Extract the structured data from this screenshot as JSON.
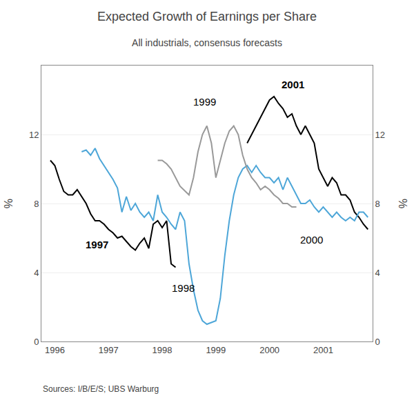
{
  "chart_data": {
    "type": "line",
    "title": "Expected Growth of Earnings per Share",
    "subtitle": "All industrials, consensus forecasts",
    "source": "Sources: I/B/E/S; UBS Warburg",
    "ylabel": "%",
    "y2label": "%",
    "xlim": [
      1995.75,
      2001.92
    ],
    "xticks": [
      1996,
      1997,
      1998,
      1999,
      2000,
      2001
    ],
    "ylim": [
      0,
      16
    ],
    "yticks": [
      0,
      4,
      8,
      12
    ],
    "y2lim": [
      0,
      16
    ],
    "y2ticks": [
      0,
      4,
      8,
      12
    ],
    "grid": true,
    "annotations": [
      {
        "text": "1997",
        "x": 1996.55,
        "y": 5.2,
        "bold": true
      },
      {
        "text": "1998",
        "x": 1998.15,
        "y": 2.7,
        "bold": false
      },
      {
        "text": "1999",
        "x": 1998.55,
        "y": 13.5,
        "bold": false
      },
      {
        "text": "2000",
        "x": 2000.55,
        "y": 5.5,
        "bold": false
      },
      {
        "text": "2001",
        "x": 2000.2,
        "y": 14.5,
        "bold": true
      }
    ],
    "series": [
      {
        "color": "#000000",
        "x": [
          1995.917,
          1996.0,
          1996.083,
          1996.167,
          1996.25,
          1996.333,
          1996.417,
          1996.5,
          1996.583,
          1996.667,
          1996.75,
          1996.833,
          1996.917,
          1997.0,
          1997.083,
          1997.167,
          1997.25,
          1997.333,
          1997.417,
          1997.5,
          1997.583,
          1997.667,
          1997.75,
          1997.833,
          1997.917,
          1998.0,
          1998.083,
          1998.167,
          1998.25
        ],
        "values": [
          10.5,
          10.2,
          9.4,
          8.7,
          8.5,
          8.5,
          8.8,
          8.4,
          8.0,
          7.4,
          7.0,
          7.0,
          6.8,
          6.5,
          6.3,
          6.0,
          6.1,
          5.8,
          5.5,
          5.3,
          5.7,
          6.0,
          5.4,
          6.8,
          7.0,
          6.6,
          7.0,
          4.5,
          4.3
        ]
      },
      {
        "color": "#000000",
        "x": [
          1999.583,
          1999.667,
          1999.75,
          1999.833,
          1999.917,
          2000.0,
          2000.083,
          2000.167,
          2000.25,
          2000.333,
          2000.417,
          2000.5,
          2000.583,
          2000.667,
          2000.75,
          2000.833,
          2000.917,
          2001.0,
          2001.083,
          2001.167,
          2001.25,
          2001.333,
          2001.417,
          2001.5,
          2001.583,
          2001.667,
          2001.75,
          2001.833
        ],
        "values": [
          11.5,
          12.0,
          12.5,
          13.0,
          13.5,
          14.0,
          14.2,
          13.8,
          13.5,
          13.0,
          13.2,
          12.5,
          12.0,
          12.5,
          12.0,
          11.5,
          10.0,
          9.5,
          9.0,
          9.5,
          9.2,
          8.5,
          8.5,
          8.2,
          7.5,
          7.2,
          6.8,
          6.5
        ]
      },
      {
        "color": "#4da6d8",
        "x": [
          1996.5,
          1996.583,
          1996.667,
          1996.75,
          1996.833,
          1996.917,
          1997.0,
          1997.083,
          1997.167,
          1997.25,
          1997.333,
          1997.417,
          1997.5,
          1997.583,
          1997.667,
          1997.75,
          1997.833,
          1997.917,
          1998.0,
          1998.083,
          1998.167,
          1998.25,
          1998.333,
          1998.417,
          1998.5,
          1998.583,
          1998.667,
          1998.75,
          1998.833,
          1999.0,
          1999.083,
          1999.167,
          1999.25,
          1999.333,
          1999.417,
          1999.5,
          1999.583,
          1999.667,
          1999.75,
          1999.833,
          1999.917,
          2000.0,
          2000.083,
          2000.167,
          2000.25,
          2000.333,
          2000.417,
          2000.5,
          2000.583,
          2000.667,
          2000.75,
          2000.833,
          2000.917,
          2001.0,
          2001.083,
          2001.167,
          2001.25,
          2001.333,
          2001.417,
          2001.5,
          2001.583,
          2001.667,
          2001.75,
          2001.833
        ],
        "values": [
          11.0,
          11.1,
          10.8,
          11.2,
          10.6,
          10.2,
          9.8,
          9.4,
          8.9,
          7.5,
          8.4,
          7.6,
          8.0,
          7.5,
          7.2,
          7.5,
          7.0,
          8.5,
          7.5,
          7.2,
          6.8,
          6.5,
          7.5,
          7.0,
          4.5,
          3.0,
          1.8,
          1.2,
          1.0,
          1.2,
          2.5,
          5.0,
          7.0,
          8.5,
          9.5,
          10.0,
          10.2,
          9.8,
          10.2,
          9.8,
          9.5,
          9.5,
          9.2,
          9.5,
          8.8,
          9.5,
          9.0,
          8.5,
          8.0,
          8.0,
          8.2,
          7.8,
          7.5,
          7.8,
          7.5,
          7.2,
          7.5,
          7.2,
          7.0,
          7.2,
          7.0,
          7.5,
          7.5,
          7.2
        ]
      },
      {
        "color": "#999999",
        "x": [
          1997.917,
          1998.0,
          1998.083,
          1998.167,
          1998.25,
          1998.333,
          1998.5,
          1998.583,
          1998.667,
          1998.75,
          1998.833,
          1998.917,
          1999.0,
          1999.083,
          1999.167,
          1999.25,
          1999.333,
          1999.417,
          1999.5,
          1999.583,
          1999.667,
          1999.75,
          1999.833,
          1999.917,
          2000.0,
          2000.083,
          2000.167,
          2000.25,
          2000.333,
          2000.417,
          2000.5
        ],
        "values": [
          10.5,
          10.5,
          10.3,
          10.0,
          9.5,
          9.0,
          8.5,
          9.5,
          11.0,
          12.0,
          12.5,
          11.5,
          9.5,
          10.5,
          11.5,
          12.2,
          12.5,
          12.0,
          10.8,
          10.0,
          9.5,
          9.2,
          8.8,
          9.0,
          8.8,
          8.5,
          8.3,
          8.0,
          8.0,
          7.8,
          7.8
        ]
      }
    ]
  }
}
